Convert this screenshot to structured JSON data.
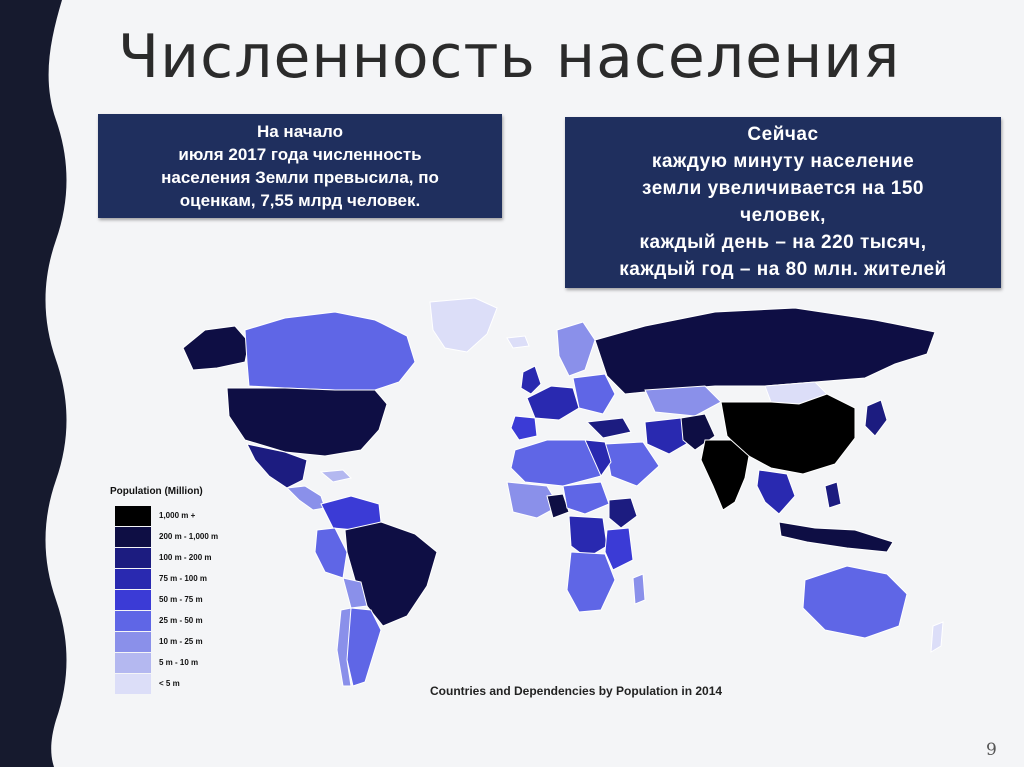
{
  "slide": {
    "title": "Численность населения",
    "page_number": "9"
  },
  "box_left": {
    "lines": [
      "На начало",
      "июля 2017 года численность",
      "населения Земли превысила, по",
      "оценкам, 7,55 млрд человек."
    ]
  },
  "box_right": {
    "lines": [
      "Сейчас",
      "каждую минуту население",
      "земли увеличивается на 150",
      "человек,",
      "каждый день – на 220 тысяч,",
      "каждый год – на 80 млн. жителей"
    ]
  },
  "map": {
    "caption": "Countries and Dependencies by Population in 2014",
    "legend_title": "Population (Million)",
    "legend": [
      {
        "label": "1,000 m +",
        "color": "#000000"
      },
      {
        "label": "200 m - 1,000 m",
        "color": "#0e0e44"
      },
      {
        "label": "100 m - 200 m",
        "color": "#1c1c80"
      },
      {
        "label": "75 m - 100 m",
        "color": "#2929b0"
      },
      {
        "label": "50 m - 75 m",
        "color": "#3b3bd6"
      },
      {
        "label": "25 m - 50 m",
        "color": "#5f66e6"
      },
      {
        "label": "10 m - 25 m",
        "color": "#8a90ea"
      },
      {
        "label": "5 m - 10 m",
        "color": "#b4b8f0"
      },
      {
        "label": "< 5 m",
        "color": "#dcdef8"
      }
    ]
  },
  "colors": {
    "box_bg": "#1f2f5e",
    "left_band": "#161a2e"
  }
}
